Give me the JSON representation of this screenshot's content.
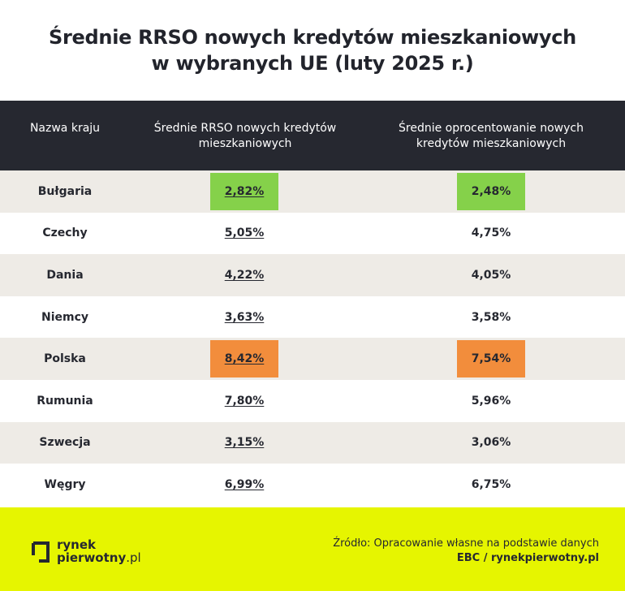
{
  "title": {
    "line1": "Średnie RRSO nowych kredytów mieszkaniowych",
    "line2": "w wybranych UE (luty 2025 r.)"
  },
  "chart_data": {
    "type": "table",
    "columns": [
      "Nazwa kraju",
      "Średnie RRSO nowych kredytów mieszkaniowych",
      "Średnie oprocentowanie nowych kredytów mieszkaniowych"
    ],
    "header_lines": {
      "country": "Nazwa kraju",
      "rrso_l1": "Średnie RRSO nowych kredytów",
      "rrso_l2": "mieszkaniowych",
      "rate_l1": "Średnie oprocentowanie nowych",
      "rate_l2": "kredytów mieszkaniowych"
    },
    "rows": [
      {
        "country": "Bułgaria",
        "rrso": "2,82%",
        "rate": "2,48%",
        "highlight": "lowest"
      },
      {
        "country": "Czechy",
        "rrso": "5,05%",
        "rate": "4,75%",
        "highlight": ""
      },
      {
        "country": "Dania",
        "rrso": "4,22%",
        "rate": "4,05%",
        "highlight": ""
      },
      {
        "country": "Niemcy",
        "rrso": "3,63%",
        "rate": "3,58%",
        "highlight": ""
      },
      {
        "country": "Polska",
        "rrso": "8,42%",
        "rate": "7,54%",
        "highlight": "highest"
      },
      {
        "country": "Rumunia",
        "rrso": "7,80%",
        "rate": "5,96%",
        "highlight": ""
      },
      {
        "country": "Szwecja",
        "rrso": "3,15%",
        "rate": "3,06%",
        "highlight": ""
      },
      {
        "country": "Węgry",
        "rrso": "6,99%",
        "rate": "6,75%",
        "highlight": ""
      }
    ]
  },
  "colors": {
    "header_bg": "#262830",
    "row_shade": "#eeebe6",
    "highlight_lowest": "#85d14a",
    "highlight_highest": "#f28d3c",
    "footer_bg": "#e6f500"
  },
  "footer": {
    "logo_line1": "rynek",
    "logo_line2": "pierwotny",
    "logo_tld": ".pl",
    "logo_icon": "bracket-logo-icon",
    "source_line1": "Źródło: Opracowanie własne na podstawie danych",
    "source_line2": "EBC / rynekpierwotny.pl"
  }
}
